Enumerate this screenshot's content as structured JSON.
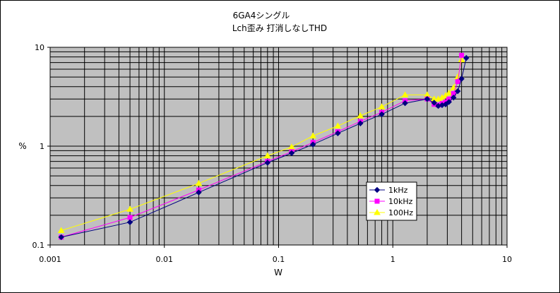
{
  "chart_data": {
    "type": "line",
    "title": "6GA4シングル",
    "subtitle": "Lch歪み 打消しなしTHD",
    "xlabel": "W",
    "ylabel": "%",
    "xscale": "log",
    "yscale": "log",
    "xlim": [
      0.001,
      10
    ],
    "ylim": [
      0.1,
      10
    ],
    "x_ticks": [
      "0.001",
      "0.01",
      "0.1",
      "1",
      "10"
    ],
    "y_ticks": [
      "0.1",
      "1",
      "10"
    ],
    "grid": true,
    "plot_background": "#c0c0c0",
    "legend_position": "lower-right",
    "series": [
      {
        "name": "1kHz",
        "color": "#000080",
        "marker": "diamond",
        "points": [
          [
            0.00125,
            0.12
          ],
          [
            0.005,
            0.17
          ],
          [
            0.02,
            0.34
          ],
          [
            0.08,
            0.68
          ],
          [
            0.13,
            0.85
          ],
          [
            0.2,
            1.04
          ],
          [
            0.33,
            1.35
          ],
          [
            0.52,
            1.7
          ],
          [
            0.8,
            2.1
          ],
          [
            1.28,
            2.72
          ],
          [
            2.0,
            3.0
          ],
          [
            2.3,
            2.75
          ],
          [
            2.5,
            2.55
          ],
          [
            2.7,
            2.6
          ],
          [
            2.9,
            2.65
          ],
          [
            3.1,
            2.8
          ],
          [
            3.4,
            3.1
          ],
          [
            3.7,
            3.6
          ],
          [
            4.0,
            4.8
          ],
          [
            4.4,
            7.8
          ]
        ]
      },
      {
        "name": "10kHz",
        "color": "#ff00ff",
        "marker": "square",
        "points": [
          [
            0.00125,
            0.12
          ],
          [
            0.005,
            0.19
          ],
          [
            0.02,
            0.36
          ],
          [
            0.08,
            0.7
          ],
          [
            0.13,
            0.88
          ],
          [
            0.2,
            1.09
          ],
          [
            0.33,
            1.4
          ],
          [
            0.52,
            1.78
          ],
          [
            0.8,
            2.2
          ],
          [
            1.28,
            2.88
          ],
          [
            2.0,
            3.0
          ],
          [
            2.3,
            2.65
          ],
          [
            2.5,
            2.6
          ],
          [
            2.7,
            2.7
          ],
          [
            2.9,
            2.8
          ],
          [
            3.1,
            3.0
          ],
          [
            3.4,
            3.4
          ],
          [
            3.7,
            4.5
          ],
          [
            4.0,
            8.3
          ]
        ]
      },
      {
        "name": "100Hz",
        "color": "#ffff00",
        "marker": "triangle",
        "points": [
          [
            0.00125,
            0.14
          ],
          [
            0.005,
            0.23
          ],
          [
            0.02,
            0.42
          ],
          [
            0.08,
            0.8
          ],
          [
            0.13,
            0.98
          ],
          [
            0.2,
            1.27
          ],
          [
            0.33,
            1.6
          ],
          [
            0.52,
            2.03
          ],
          [
            0.8,
            2.5
          ],
          [
            1.28,
            3.3
          ],
          [
            2.0,
            3.3
          ],
          [
            2.3,
            3.0
          ],
          [
            2.5,
            3.0
          ],
          [
            2.7,
            3.1
          ],
          [
            2.9,
            3.25
          ],
          [
            3.1,
            3.45
          ],
          [
            3.4,
            3.9
          ],
          [
            3.7,
            5.0
          ],
          [
            4.0,
            7.5
          ]
        ]
      }
    ]
  }
}
